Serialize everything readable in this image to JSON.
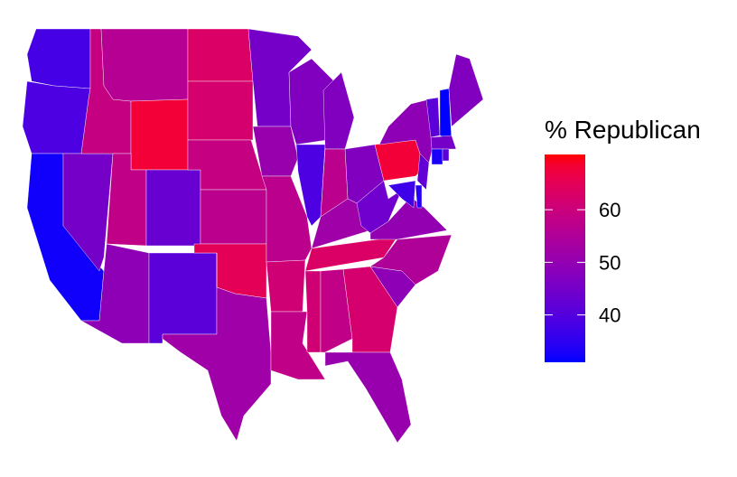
{
  "chart_data": {
    "type": "choropleth",
    "legend_title": "% Republican",
    "values": [
      38,
      39,
      32,
      45,
      59,
      56,
      68,
      58,
      43,
      49,
      41,
      63,
      62,
      59,
      57,
      65,
      52,
      45,
      51,
      57,
      61,
      58,
      47,
      39,
      47,
      47,
      57,
      52,
      63,
      61,
      58,
      62,
      51,
      49,
      55,
      50,
      44,
      68,
      49,
      37,
      34,
      42,
      41,
      31,
      47,
      45,
      33,
      41,
      39
    ],
    "zlim": [
      31,
      70.5
    ],
    "zticks": [
      40,
      50,
      60
    ],
    "low_color": "#0000FF",
    "high_color": "#FF0000"
  }
}
